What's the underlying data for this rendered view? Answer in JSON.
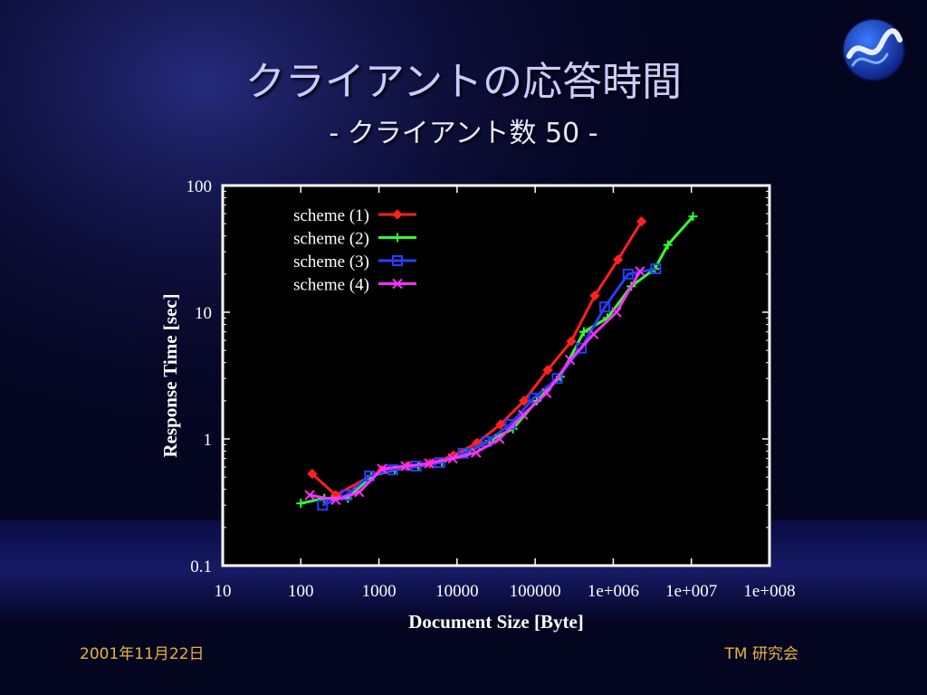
{
  "slide": {
    "title": "クライアントの応答時間",
    "subtitle": "- クライアント数 50 -",
    "footer_left": "2001年11月22日",
    "footer_right": "TM 研究会",
    "logo_icon": "swirl-logo-icon"
  },
  "colors": {
    "title": "#c8ccff",
    "footer": "#e6b43c",
    "plot_frame": "#ffffff"
  },
  "chart_data": {
    "type": "line",
    "title": "",
    "xlabel": "Document Size [Byte]",
    "ylabel": "Response Time [sec]",
    "x_scale": "log",
    "y_scale": "log",
    "xlim": [
      10,
      100000000
    ],
    "ylim": [
      0.1,
      100
    ],
    "x_ticks": [
      10,
      100,
      1000,
      10000,
      100000,
      1000000,
      10000000,
      100000000
    ],
    "x_tick_labels": [
      "10",
      "100",
      "1000",
      "10000",
      "100000",
      "1e+006",
      "1e+007",
      "1e+008"
    ],
    "y_ticks": [
      0.1,
      1,
      10,
      100
    ],
    "y_tick_labels": [
      "0.1",
      "1",
      "10",
      "100"
    ],
    "grid": false,
    "legend_position": "top-left",
    "series": [
      {
        "name": "scheme (1)",
        "color": "#ff2020",
        "marker": "diamond",
        "points": [
          [
            140,
            0.53
          ],
          [
            280,
            0.36
          ],
          [
            1100,
            0.57
          ],
          [
            2300,
            0.61
          ],
          [
            4500,
            0.64
          ],
          [
            9000,
            0.74
          ],
          [
            18000,
            0.93
          ],
          [
            36000,
            1.3
          ],
          [
            72000,
            2.0
          ],
          [
            145000,
            3.5
          ],
          [
            290000,
            5.9
          ],
          [
            580000,
            13.5
          ],
          [
            1150000,
            26
          ],
          [
            2300000,
            52
          ]
        ]
      },
      {
        "name": "scheme (2)",
        "color": "#30ff30",
        "marker": "plus",
        "points": [
          [
            100,
            0.31
          ],
          [
            200,
            0.34
          ],
          [
            400,
            0.34
          ],
          [
            800,
            0.51
          ],
          [
            1600,
            0.57
          ],
          [
            3200,
            0.61
          ],
          [
            6400,
            0.66
          ],
          [
            13000,
            0.78
          ],
          [
            26000,
            0.97
          ],
          [
            52000,
            1.2
          ],
          [
            105000,
            2.0
          ],
          [
            210000,
            3.1
          ],
          [
            420000,
            7.0
          ],
          [
            840000,
            9.0
          ],
          [
            1700000,
            16
          ],
          [
            3400000,
            22
          ],
          [
            5000000,
            34
          ],
          [
            10500000,
            57
          ]
        ]
      },
      {
        "name": "scheme (3)",
        "color": "#2a3dff",
        "marker": "square",
        "points": [
          [
            190,
            0.3
          ],
          [
            380,
            0.36
          ],
          [
            760,
            0.51
          ],
          [
            1500,
            0.57
          ],
          [
            3000,
            0.61
          ],
          [
            6000,
            0.65
          ],
          [
            12000,
            0.77
          ],
          [
            24000,
            0.95
          ],
          [
            48000,
            1.3
          ],
          [
            96000,
            2.1
          ],
          [
            192000,
            3.0
          ],
          [
            390000,
            5.2
          ],
          [
            780000,
            11
          ],
          [
            1550000,
            20
          ],
          [
            3500000,
            22
          ]
        ]
      },
      {
        "name": "scheme (4)",
        "color": "#ff30ff",
        "marker": "cross",
        "points": [
          [
            130,
            0.36
          ],
          [
            280,
            0.33
          ],
          [
            560,
            0.38
          ],
          [
            1100,
            0.58
          ],
          [
            2200,
            0.61
          ],
          [
            4400,
            0.64
          ],
          [
            8800,
            0.7
          ],
          [
            17500,
            0.78
          ],
          [
            35000,
            1.0
          ],
          [
            70000,
            1.55
          ],
          [
            140000,
            2.3
          ],
          [
            280000,
            4.2
          ],
          [
            560000,
            6.7
          ],
          [
            1100000,
            10
          ],
          [
            2200000,
            21
          ]
        ]
      }
    ]
  }
}
